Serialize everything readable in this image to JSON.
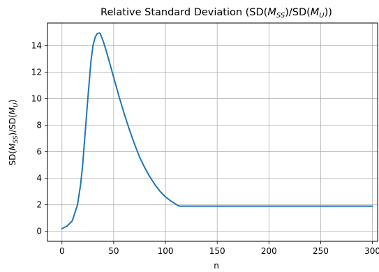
{
  "chart_data": {
    "type": "line",
    "title": "Relative Standard Deviation (SD(M_SS)/SD(M_U))",
    "xlabel": "n",
    "ylabel": "SD(M_SS)/SD(M_U)",
    "xlim": [
      -14,
      305
    ],
    "ylim": [
      -0.75,
      15.7
    ],
    "x_ticks": [
      0,
      50,
      100,
      150,
      200,
      250,
      300
    ],
    "y_ticks": [
      0,
      2,
      4,
      6,
      8,
      10,
      12,
      14
    ],
    "grid": true,
    "line_color": "#1f77b4",
    "series": [
      {
        "x": [
          0,
          5,
          10,
          15,
          18,
          20,
          22,
          25,
          28,
          30,
          32,
          34,
          36,
          37,
          38,
          40,
          42,
          45,
          50,
          55,
          60,
          65,
          70,
          75,
          80,
          85,
          90,
          95,
          100,
          105,
          110,
          112,
          114,
          115,
          150,
          200,
          250,
          300
        ],
        "y": [
          0.2,
          0.4,
          0.8,
          2.0,
          3.5,
          5.0,
          7.0,
          10.0,
          12.8,
          14.0,
          14.6,
          14.9,
          14.95,
          14.9,
          14.7,
          14.3,
          13.8,
          13.0,
          11.6,
          10.2,
          8.9,
          7.7,
          6.6,
          5.6,
          4.8,
          4.1,
          3.5,
          3.0,
          2.6,
          2.3,
          2.05,
          1.95,
          1.9,
          1.9,
          1.9,
          1.9,
          1.9,
          1.9
        ]
      }
    ]
  }
}
